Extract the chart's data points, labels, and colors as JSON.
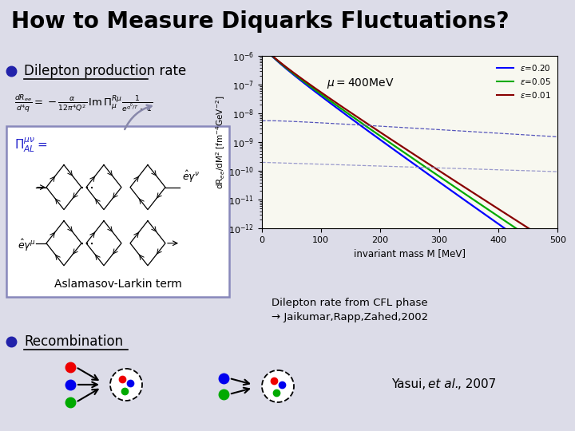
{
  "title": "How to Measure Diquarks Fluctuations?",
  "title_fontsize": 20,
  "background_color": "#dcdce8",
  "bullet_color": "#2222aa",
  "bullet1_text": "Dilepton production rate",
  "bullet2_text": "Recombination",
  "aslamasov_text": "Aslamasov-Larkin term",
  "xlabel": "invariant mass M [MeV]",
  "ylim_log": [
    -12,
    -6
  ],
  "xlim": [
    0,
    500
  ],
  "line_colors": [
    "#0000ff",
    "#00aa00",
    "#880000"
  ],
  "cfl_text1": "Dilepton rate from CFL phase",
  "cfl_text2": "→ Jaikumar,Rapp,Zahed,2002",
  "yasui_text": "Yasui, ",
  "yasui_italic": "et al.",
  "yasui_year": ", 2007",
  "plot_bg": "#f8f8f0",
  "header_line_color": "#8888aa",
  "box_edge_color": "#8888bb"
}
